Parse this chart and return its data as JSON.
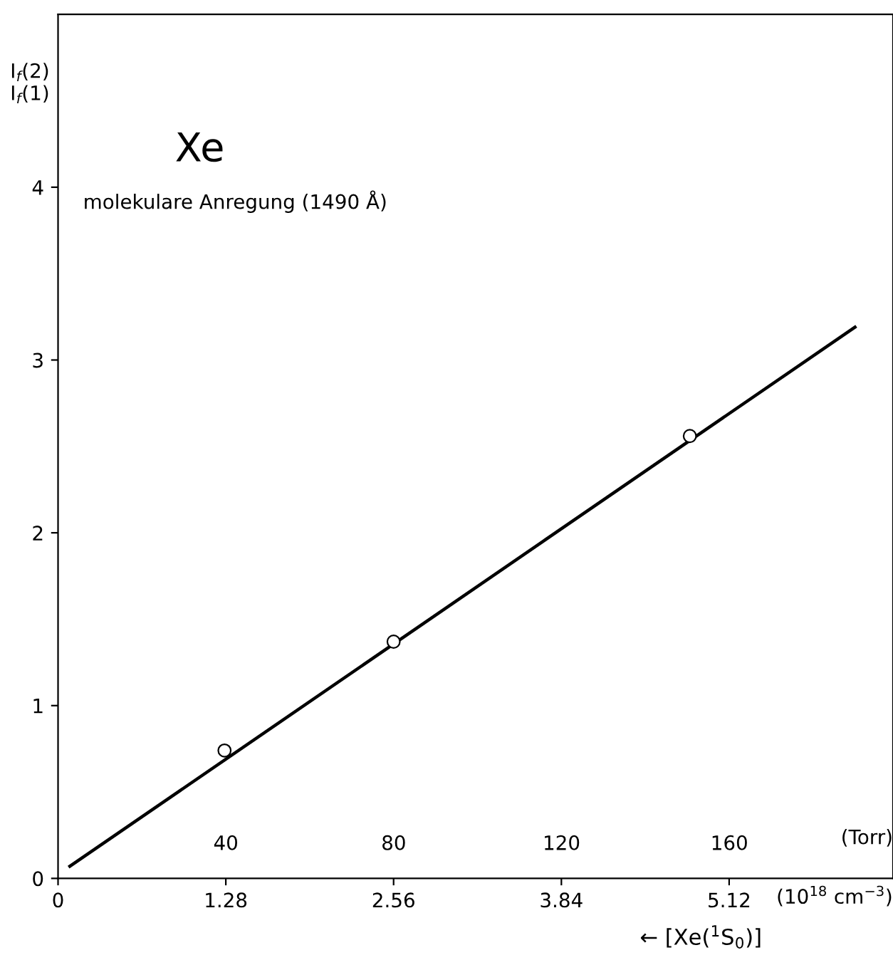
{
  "chart_data": {
    "type": "line",
    "title": "Xe",
    "subtitle": "molekulare Anregung (1490 Å)",
    "ylabel": "I$_{f}$(2)\nI$_{f}$(1)",
    "xlabel": "← [Xe($^{1}$S$_{0}$)]",
    "x2label": "(Torr)",
    "annotations": [
      "(10$^{18}$ cm$^{−3}$)"
    ],
    "series": [
      {
        "color": "#000000",
        "x": [
          0.09,
          6.08
        ],
        "values": [
          0.07,
          3.19
        ],
        "marker": "none"
      },
      {
        "type": "scatter",
        "color": "#000000",
        "x": [
          1.27,
          2.56,
          4.82
        ],
        "values": [
          0.74,
          1.37,
          2.56
        ],
        "marker": "circle"
      }
    ],
    "xlim": [
      0,
      6.37
    ],
    "xticks": [
      0,
      1.28,
      2.56,
      3.84,
      5.12
    ],
    "x2lim": [
      0,
      199
    ],
    "x2ticks": [
      40,
      80,
      120,
      160
    ],
    "ylim": [
      0,
      5
    ],
    "yticks": [
      0,
      1,
      2,
      3,
      4
    ],
    "grid": false,
    "legend": false
  }
}
